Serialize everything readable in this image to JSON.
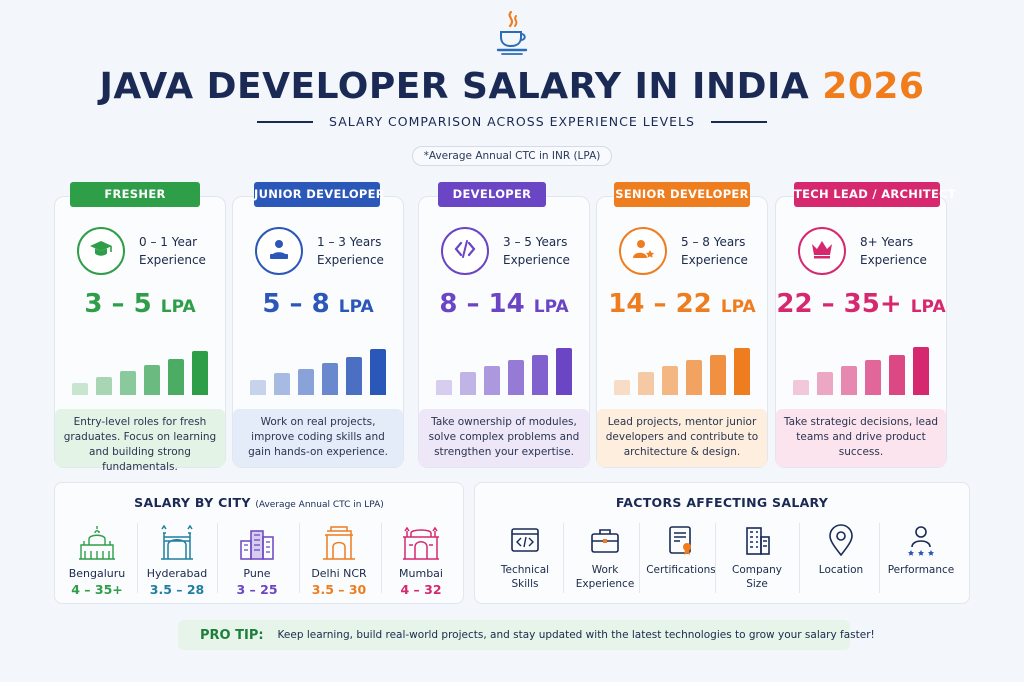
{
  "header": {
    "title_main": "JAVA DEVELOPER SALARY IN INDIA",
    "title_year": "2026",
    "subtitle": "SALARY COMPARISON ACROSS EXPERIENCE LEVELS",
    "note": "*Average Annual CTC in INR (LPA)",
    "logo_icon": "java-coffee-cup-icon"
  },
  "levels": [
    {
      "tag": "FRESHER",
      "exp_line1": "0 – 1 Year",
      "exp_line2": "Experience",
      "salary": "3 – 5",
      "unit": "LPA",
      "description": "Entry-level roles for fresh graduates. Focus on learning and building strong fundamentals.",
      "color": "#2e9e48",
      "light": "#e3f3e6",
      "icon": "graduation-cap-icon",
      "bar_levels": [
        0.25,
        0.38,
        0.5,
        0.62,
        0.75,
        0.92
      ]
    },
    {
      "tag": "JUNIOR DEVELOPER",
      "exp_line1": "1 – 3 Years",
      "exp_line2": "Experience",
      "salary": "5 – 8",
      "unit": "LPA",
      "description": "Work on real projects, improve coding skills and gain hands-on experience.",
      "color": "#2b57b8",
      "light": "#e3ecf8",
      "icon": "developer-at-laptop-icon",
      "bar_levels": [
        0.32,
        0.45,
        0.55,
        0.66,
        0.8,
        0.96
      ]
    },
    {
      "tag": "DEVELOPER",
      "exp_line1": "3 – 5 Years",
      "exp_line2": "Experience",
      "salary": "8 – 14",
      "unit": "LPA",
      "description": "Take ownership of modules, solve complex problems and strengthen your expertise.",
      "color": "#6a45c4",
      "light": "#ede7f8",
      "icon": "code-brackets-icon",
      "bar_levels": [
        0.32,
        0.48,
        0.6,
        0.72,
        0.84,
        0.98
      ]
    },
    {
      "tag": "SENIOR DEVELOPER",
      "exp_line1": "5 – 8 Years",
      "exp_line2": "Experience",
      "salary": "14 – 22",
      "unit": "LPA",
      "description": "Lead projects, mentor junior developers and contribute to architecture & design.",
      "color": "#ee7d1f",
      "light": "#fdeede",
      "icon": "senior-developer-star-icon",
      "bar_levels": [
        0.32,
        0.48,
        0.6,
        0.72,
        0.84,
        0.98
      ]
    },
    {
      "tag": "TECH LEAD / ARCHITECT",
      "exp_line1": "8+ Years",
      "exp_line2": "Experience",
      "salary": "22 – 35+",
      "unit": "LPA",
      "description": "Take strategic decisions, lead teams and drive product success.",
      "color": "#d6286f",
      "light": "#fbe4ee",
      "icon": "crown-icon",
      "bar_levels": [
        0.32,
        0.48,
        0.6,
        0.72,
        0.84,
        1.0
      ]
    }
  ],
  "cities": {
    "title": "SALARY BY CITY",
    "title_note": "(Average Annual CTC in LPA)",
    "items": [
      {
        "name": "Bengaluru",
        "range": "4 – 35+",
        "color": "#2e9e48",
        "icon": "palace-icon"
      },
      {
        "name": "Hyderabad",
        "range": "3.5 – 28",
        "color": "#1f7fa0",
        "icon": "charminar-icon"
      },
      {
        "name": "Pune",
        "range": "3 – 25",
        "color": "#6a45c4",
        "icon": "buildings-icon"
      },
      {
        "name": "Delhi NCR",
        "range": "3.5 – 30",
        "color": "#ee7d1f",
        "icon": "india-gate-icon"
      },
      {
        "name": "Mumbai",
        "range": "4 – 32",
        "color": "#d6286f",
        "icon": "gateway-of-india-icon"
      }
    ]
  },
  "factors": {
    "title": "FACTORS AFFECTING SALARY",
    "items": [
      {
        "label_line1": "Technical",
        "label_line2": "Skills",
        "icon": "code-window-icon"
      },
      {
        "label_line1": "Work",
        "label_line2": "Experience",
        "icon": "briefcase-icon"
      },
      {
        "label_line1": "Certifications",
        "label_line2": "",
        "icon": "certificate-icon"
      },
      {
        "label_line1": "Company",
        "label_line2": "Size",
        "icon": "office-building-icon"
      },
      {
        "label_line1": "Location",
        "label_line2": "",
        "icon": "location-pin-icon"
      },
      {
        "label_line1": "Performance",
        "label_line2": "",
        "icon": "performance-stars-icon"
      }
    ]
  },
  "protip": {
    "label": "PRO TIP:",
    "text": "Keep learning, build real-world projects, and stay updated with the latest technologies to grow your salary faster!",
    "icon": "rocket-icon"
  }
}
